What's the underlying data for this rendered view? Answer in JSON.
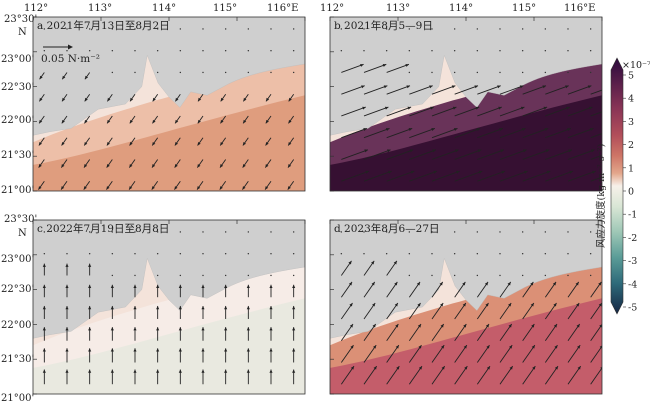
{
  "figure": {
    "x_tick_labels": [
      "112°",
      "113°",
      "114°",
      "115°",
      "116°E"
    ],
    "y_tick_labels": [
      "23°30'",
      "23°00'",
      "22°30'",
      "22°00'",
      "21°30'",
      "21°00'"
    ],
    "y_axis_letter": "N",
    "scale_label": "0.05 N·m⁻²"
  },
  "panels": [
    {
      "id": "a",
      "title": "a 2021年7月13日至8月2日",
      "fill": "#ecbaa2",
      "deep": "#dc9677",
      "curl": "weak positive",
      "wind_dir_deg": 235,
      "wind_mag": 0.35
    },
    {
      "id": "b",
      "title": "b 2021年8月5—9日",
      "fill": "#5a1f4a",
      "deep": "#2e0a2c",
      "curl": "strong positive",
      "wind_dir_deg": 20,
      "wind_mag": 1.0
    },
    {
      "id": "c",
      "title": "c 2022年7月19日至8月8日",
      "fill": "#f6ece8",
      "deep": "#dfe7da",
      "curl": "near zero",
      "wind_dir_deg": 90,
      "wind_mag": 0.5
    },
    {
      "id": "d",
      "title": "d 2023年8月6—27日",
      "fill": "#d8866a",
      "deep": "#bf5568",
      "curl": "positive",
      "wind_dir_deg": 55,
      "wind_mag": 0.75
    }
  ],
  "colorbar": {
    "label": "风应力旋度(kg·m⁻²·s⁻²)",
    "exponent": "×10⁻⁷",
    "ticks": [
      "5",
      "4",
      "3",
      "2",
      "1",
      "0",
      "-1",
      "-2",
      "-3",
      "-4",
      "-5"
    ],
    "colors_top_to_bottom": [
      "#2b0a3d",
      "#5a1f4a",
      "#8a3556",
      "#b14e5a",
      "#cd7466",
      "#e3a68b",
      "#f4ddd0",
      "#f7f1ea",
      "#d9e6d5",
      "#9ec7b6",
      "#5a9c97",
      "#2e6a7a",
      "#1b3d5c",
      "#152542"
    ]
  }
}
